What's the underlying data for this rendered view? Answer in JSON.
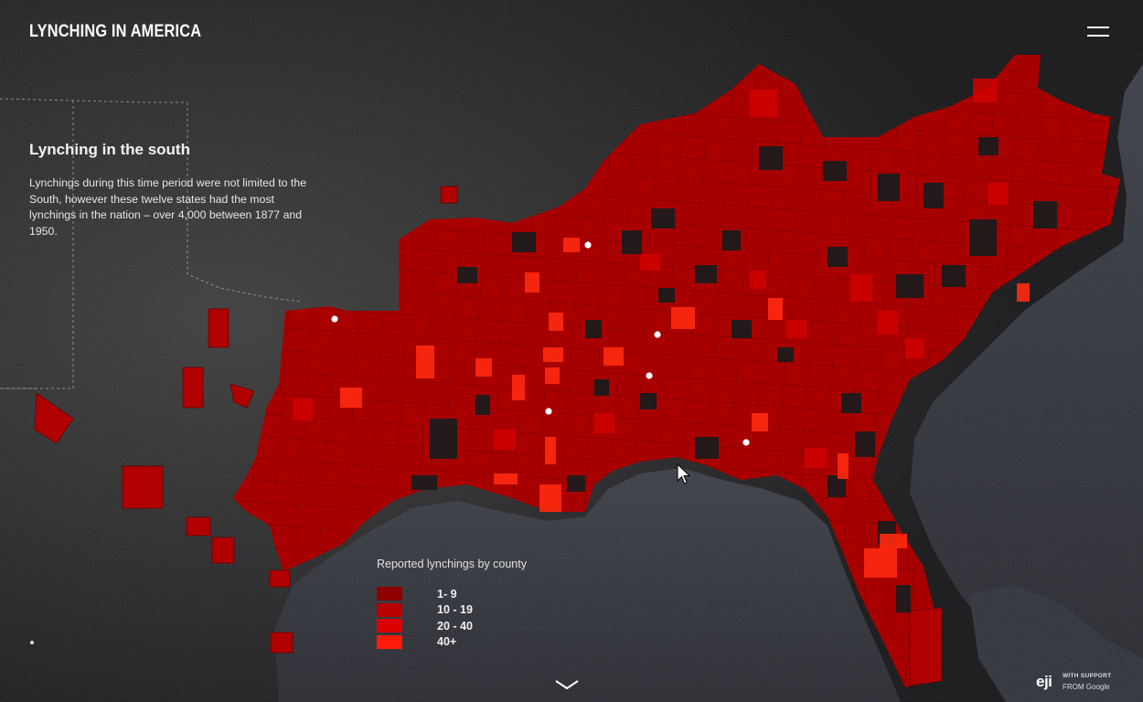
{
  "header": {
    "logo_text": "LYNCHING IN AMERICA",
    "menu_icon": "hamburger-icon"
  },
  "panel": {
    "title": "Lynching in the south",
    "body": "Lynchings during this time period were not limited to the South, however these twelve states had the most lynchings in the nation – over 4,000 between 1877 and 1950."
  },
  "legend": {
    "title": "Reported lynchings by county",
    "items": [
      {
        "label": "1- 9",
        "color": "#8e0000"
      },
      {
        "label": "10 - 19",
        "color": "#b80000"
      },
      {
        "label": "20 - 40",
        "color": "#dd0000"
      },
      {
        "label": "40+",
        "color": "#ff1a0a"
      }
    ]
  },
  "footer": {
    "scroll_icon": "chevron-down-icon",
    "sponsor_logo": "eji",
    "support_line1": "WITH SUPPORT",
    "support_line2": "FROM Google"
  },
  "colors": {
    "land_dark": "#1d1d1f",
    "water": "#2a2d35",
    "base_red": "#a80000"
  }
}
